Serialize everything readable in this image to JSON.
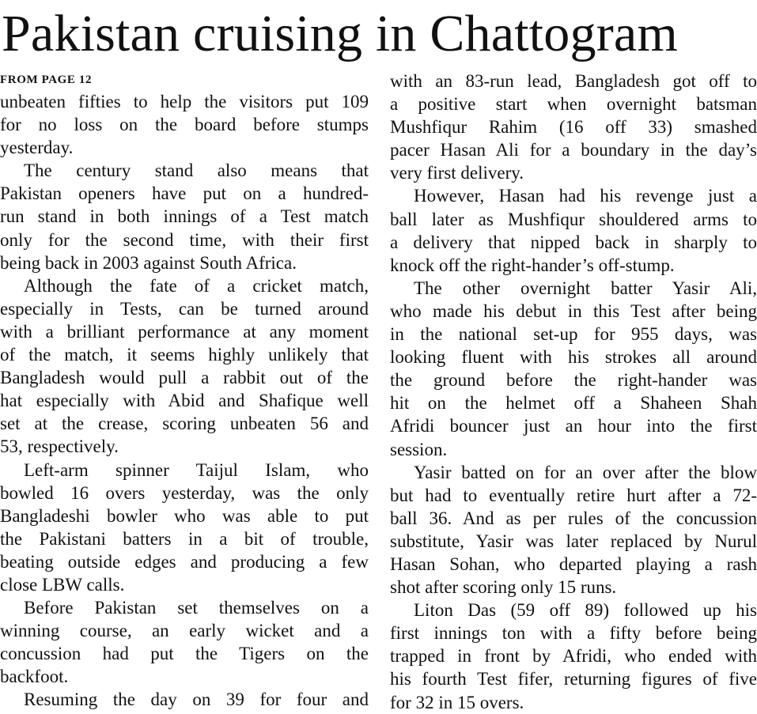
{
  "headline": "Pakistan cruising in Chattogram",
  "jump_line": "FROM PAGE 12",
  "columns": [
    {
      "paragraphs": [
        {
          "continued": true,
          "lines": [
            "unbeaten fifties to help the visitors put 109",
            "for no loss on the board before stumps",
            "yesterday."
          ]
        },
        {
          "lines": [
            "The century stand also means that",
            "Pakistan openers have put on a hundred-",
            "run stand in both innings of a Test match",
            "only for the second time, with their first",
            "being back in 2003 against South Africa."
          ]
        },
        {
          "lines": [
            "Although the fate of a cricket match,",
            "especially in Tests, can be turned around",
            "with a brilliant performance at any moment",
            "of the match, it seems highly unlikely that",
            "Bangladesh would pull a rabbit out of the",
            "hat especially with Abid and Shafique well",
            "set at the crease, scoring unbeaten 56 and",
            "53, respectively."
          ]
        },
        {
          "lines": [
            "Left-arm spinner Taijul Islam, who",
            "bowled 16 overs yesterday, was the only",
            "Bangladeshi bowler who was able to put",
            "the Pakistani batters in a bit of trouble,",
            "beating outside edges and producing a few",
            "close LBW calls."
          ]
        },
        {
          "lines": [
            "Before Pakistan set themselves on a",
            "winning course, an early wicket and a",
            "concussion had put the Tigers on the",
            "backfoot."
          ]
        },
        {
          "continues": true,
          "lines": [
            "Resuming the day on 39 for four and"
          ]
        }
      ]
    },
    {
      "paragraphs": [
        {
          "continued": true,
          "lines": [
            "with an 83-run lead, Bangladesh got off to",
            "a positive start when overnight batsman",
            "Mushfiqur Rahim (16 off 33) smashed",
            "pacer Hasan Ali for a boundary in the day’s",
            "very first delivery."
          ]
        },
        {
          "lines": [
            "However, Hasan had his revenge just a",
            "ball later as Mushfiqur shouldered arms to",
            "a delivery that nipped back in sharply to",
            "knock off the right-hander’s off-stump."
          ]
        },
        {
          "lines": [
            "The other overnight batter Yasir Ali,",
            "who made his debut in this Test after being",
            "in the national set-up for 955 days, was",
            "looking fluent with his strokes all around",
            "the ground before the right-hander was",
            "hit on the helmet off a Shaheen Shah",
            "Afridi bouncer just an hour into the first",
            "session."
          ]
        },
        {
          "lines": [
            "Yasir batted on for an over after the blow",
            "but had to eventually retire hurt after a 72-",
            "ball 36. And as per rules of the concussion",
            "substitute, Yasir was later replaced by Nurul",
            "Hasan Sohan, who departed playing a rash",
            "shot after scoring only 15 runs."
          ]
        },
        {
          "lines": [
            "Liton Das (59 off 89) followed up his",
            "first innings ton with a fifty before being",
            "trapped in front by Afridi, who ended with",
            "his fourth Test fifer, returning figures of five",
            "for 32 in 15 overs."
          ]
        }
      ]
    }
  ]
}
